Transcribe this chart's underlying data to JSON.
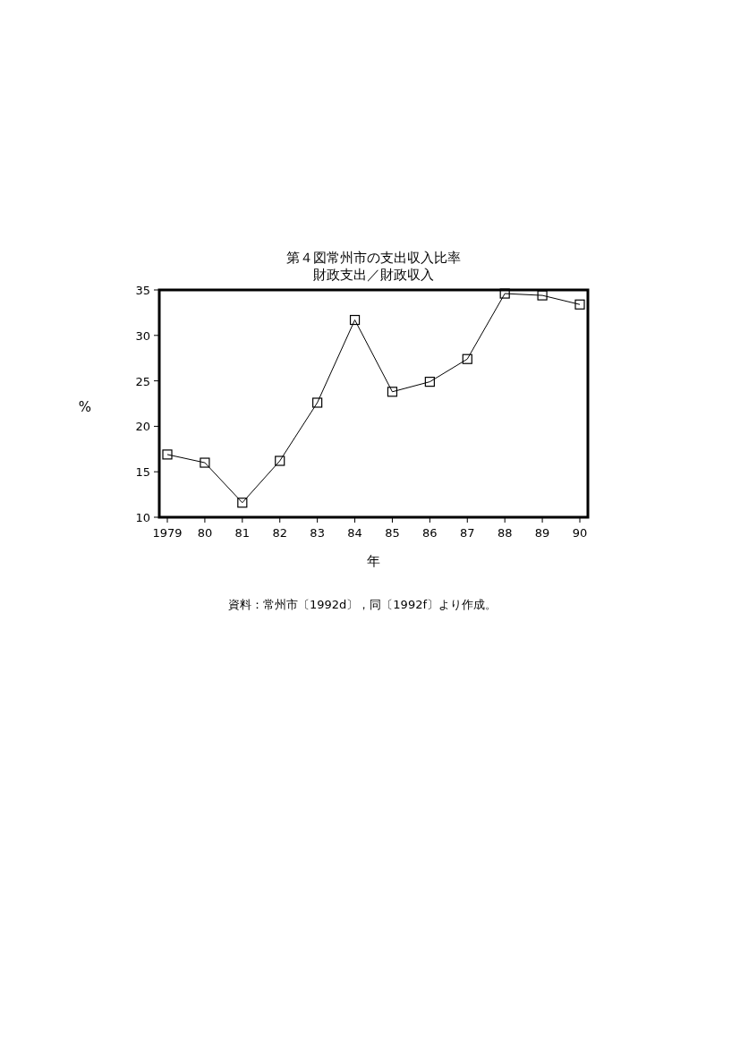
{
  "chart_data": {
    "type": "line",
    "title": "第４図常州市の支出収入比率",
    "subtitle": "財政支出／財政収入",
    "xlabel": "年",
    "ylabel": "%",
    "categories": [
      "1979",
      "80",
      "81",
      "82",
      "83",
      "84",
      "85",
      "86",
      "87",
      "88",
      "89",
      "90"
    ],
    "series": [
      {
        "color": "#000000",
        "values": [
          16.9,
          16.0,
          11.6,
          16.2,
          22.6,
          31.7,
          23.8,
          24.9,
          27.4,
          34.6,
          34.4,
          33.4
        ]
      }
    ],
    "ylim": [
      10,
      35
    ],
    "yticks": [
      10,
      15,
      20,
      25,
      30,
      35
    ],
    "marker": "square",
    "line_style": "solid",
    "grid": false,
    "annotations": [
      "資料：常州市〔1992d〕，同〔1992f〕より作成。"
    ]
  }
}
